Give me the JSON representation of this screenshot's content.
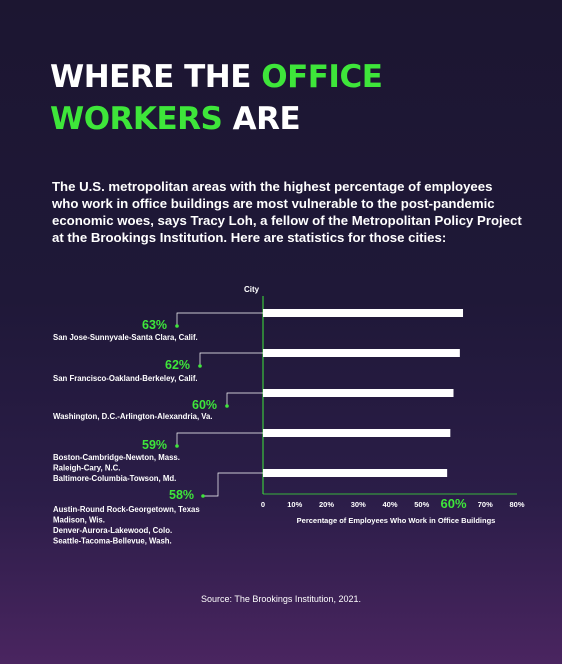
{
  "title": {
    "part1": "WHERE THE ",
    "part2": "OFFICE",
    "part3": "WORKERS",
    "part4": " ARE"
  },
  "intro": "The U.S. metropolitan areas with the highest percentage of employees who work in office buildings are most vulnerable to the post-pandemic economic woes, says Tracy Loh, a fellow of the Metropolitan Policy Project at the Brookings Institution. Here are statistics for those cities:",
  "source": "Source: The Brookings Institution, 2021.",
  "colors": {
    "accent": "#3ee63a",
    "bar": "#ffffff",
    "background": "#1f1838"
  },
  "chart_data": {
    "type": "bar",
    "orientation": "horizontal",
    "y_axis_label": "City",
    "xlabel": "Percentage of Employees Who Work in Office Buildings",
    "xlim": [
      0,
      80
    ],
    "xticks": [
      "0",
      "10%",
      "20%",
      "30%",
      "40%",
      "50%",
      "60%",
      "70%",
      "80%"
    ],
    "highlight_tick": "60%",
    "values": [
      63,
      62,
      60,
      59,
      58
    ],
    "value_labels": [
      "63%",
      "62%",
      "60%",
      "59%",
      "58%"
    ],
    "groups": [
      [
        "San Jose-Sunnyvale-Santa Clara, Calif."
      ],
      [
        "San Francisco-Oakland-Berkeley, Calif."
      ],
      [
        "Washington, D.C.-Arlington-Alexandria, Va."
      ],
      [
        "Boston-Cambridge-Newton, Mass.",
        "Raleigh-Cary, N.C.",
        "Baltimore-Columbia-Towson, Md."
      ],
      [
        "Austin-Round Rock-Georgetown, Texas",
        "Madison, Wis.",
        "Denver-Aurora-Lakewood, Colo.",
        "Seattle-Tacoma-Bellevue, Wash."
      ]
    ],
    "grid": false
  }
}
